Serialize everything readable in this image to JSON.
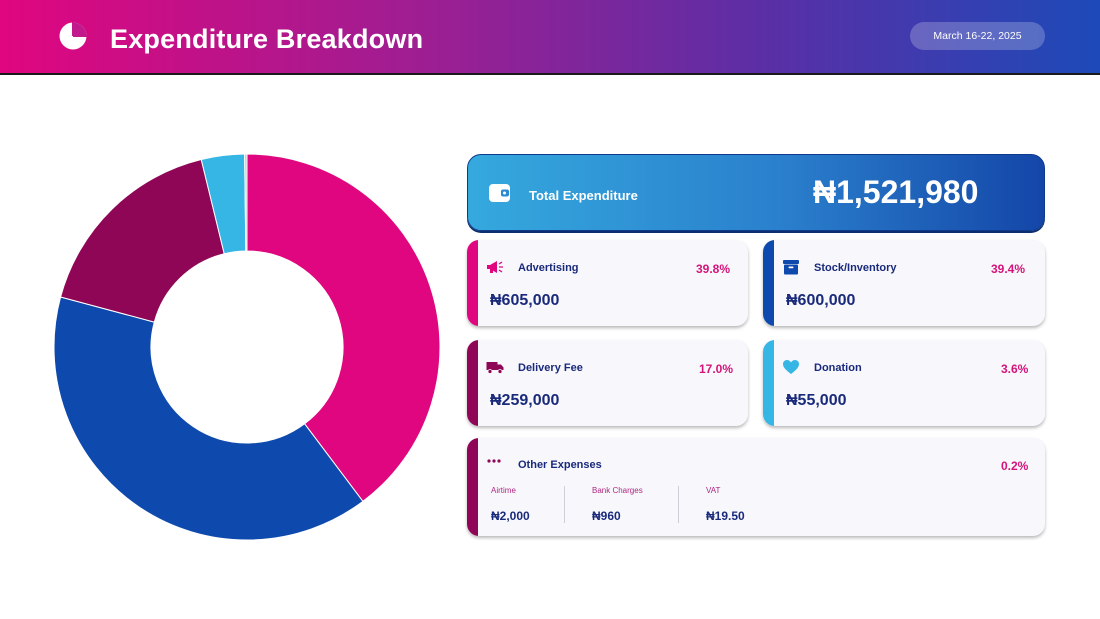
{
  "header": {
    "title": "Expenditure Breakdown",
    "date_range": "March 16-22, 2025",
    "logo_icon": "pie-chart-icon",
    "gradient": [
      "#e0067f",
      "#9b1f93",
      "#1d4ab8"
    ]
  },
  "total": {
    "label": "Total Expenditure",
    "value": "₦1,521,980",
    "icon": "wallet-icon"
  },
  "cards": [
    {
      "label": "Advertising",
      "percent": "39.8%",
      "value": "₦605,000",
      "icon": "megaphone-icon",
      "color": "#e0067f"
    },
    {
      "label": "Stock/Inventory",
      "percent": "39.4%",
      "value": "₦600,000",
      "icon": "archive-box-icon",
      "color": "#0e4aad"
    },
    {
      "label": "Delivery Fee",
      "percent": "17.0%",
      "value": "₦259,000",
      "icon": "truck-icon",
      "color": "#8f0657"
    },
    {
      "label": "Donation",
      "percent": "3.6%",
      "value": "₦55,000",
      "icon": "heart-icon",
      "color": "#35b6e4"
    }
  ],
  "other": {
    "label": "Other Expenses",
    "percent": "0.2%",
    "icon": "ellipsis-icon",
    "color": "#8f0657",
    "items": [
      {
        "label": "Airtime",
        "value": "₦2,000"
      },
      {
        "label": "Bank Charges",
        "value": "₦960"
      },
      {
        "label": "VAT",
        "value": "₦19.50"
      }
    ]
  },
  "chart_data": {
    "type": "pie",
    "donut": true,
    "categories": [
      "Advertising",
      "Stock/Inventory",
      "Delivery Fee",
      "Donation",
      "Other Expenses"
    ],
    "values": [
      605000,
      600000,
      259000,
      55000,
      2979.5
    ],
    "colors": [
      "#e0067f",
      "#0e4aad",
      "#8f0657",
      "#35b6e4",
      "#c8c8c8"
    ],
    "start_angle_deg": 0,
    "direction": "clockwise"
  }
}
